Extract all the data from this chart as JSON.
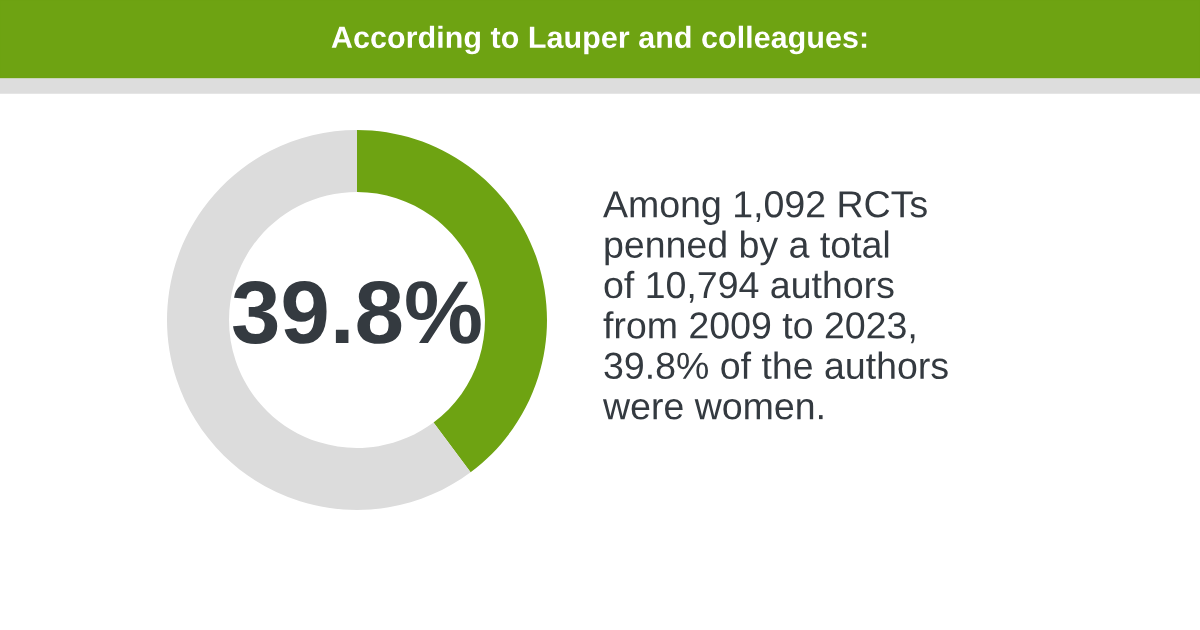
{
  "chart_data": {
    "type": "donut",
    "title": "According to Lauper and colleagues:",
    "categories": [
      null,
      null
    ],
    "values": [
      39.8,
      60.2
    ],
    "colors": [
      "#6ea312",
      "#dcdcdc"
    ],
    "value_labels": [
      "39.8%",
      null
    ],
    "annotations": [
      "Among 1,092 RCTs\npenned by a total\nof 10,794 authors\nfrom 2009 to 2023,\n39.8% of the authors\nwere women."
    ]
  }
}
